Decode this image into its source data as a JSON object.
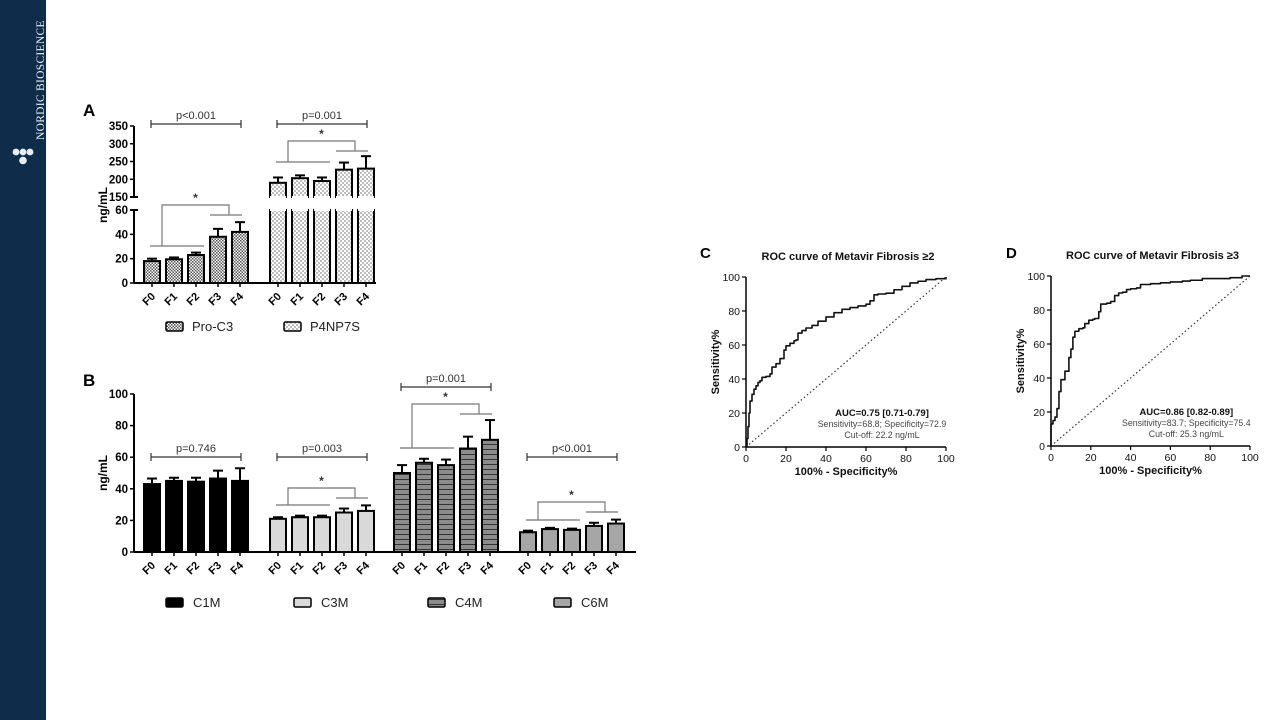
{
  "brand": {
    "name": "NORDIC BIOSCIENCE",
    "color": "#0f2d4a"
  },
  "chart_data": [
    {
      "panel": "A",
      "type": "bar",
      "ylabel": "ng/mL",
      "y_axis_broken": true,
      "ylim_lower": [
        0,
        60
      ],
      "ylim_upper": [
        150,
        350
      ],
      "yticks_lower": [
        0,
        20,
        40,
        60
      ],
      "yticks_upper": [
        150,
        200,
        250,
        300,
        350
      ],
      "categories": [
        "F0",
        "F1",
        "F2",
        "F3",
        "F4"
      ],
      "series": [
        {
          "name": "Pro-C3",
          "pattern": "dense-check",
          "values": [
            18,
            19.5,
            23,
            38,
            42
          ],
          "errors": [
            2,
            1.5,
            2,
            6.5,
            8
          ],
          "p_label": "p<0.001",
          "star": "*"
        },
        {
          "name": "P4NP7S",
          "pattern": "light-check",
          "values": [
            190,
            203,
            195,
            227,
            230
          ],
          "errors": [
            15,
            8,
            10,
            20,
            35
          ],
          "p_label": "p=0.001",
          "star": "*"
        }
      ],
      "legend": [
        "Pro-C3",
        "P4NP7S"
      ],
      "legend_position": "bottom"
    },
    {
      "panel": "B",
      "type": "bar",
      "ylabel": "ng/mL",
      "ylim": [
        0,
        100
      ],
      "yticks": [
        0,
        20,
        40,
        60,
        80,
        100
      ],
      "categories": [
        "F0",
        "F1",
        "F2",
        "F3",
        "F4"
      ],
      "series": [
        {
          "name": "C1M",
          "fill": "#000000",
          "values": [
            43,
            45,
            44.5,
            46.5,
            45
          ],
          "errors": [
            3.5,
            2,
            2.5,
            5,
            8
          ],
          "p_label": "p=0.746",
          "star": ""
        },
        {
          "name": "C3M",
          "fill": "#d9d9d9",
          "values": [
            21,
            22,
            22,
            25,
            26
          ],
          "errors": [
            1,
            1,
            1,
            2.5,
            3.5
          ],
          "p_label": "p=0.003",
          "star": "*"
        },
        {
          "name": "C4M",
          "fill": "#8c8c8c",
          "values": [
            50,
            56.5,
            55,
            65.5,
            71
          ],
          "errors": [
            5,
            2.5,
            3.5,
            7.5,
            12.5
          ],
          "p_label": "p=0.001",
          "star": "*"
        },
        {
          "name": "C6M",
          "fill": "#a6a6a6",
          "values": [
            12.5,
            14.5,
            14,
            16.5,
            18
          ],
          "errors": [
            1,
            0.8,
            0.8,
            2,
            2.5
          ],
          "p_label": "p<0.001",
          "star": "*"
        }
      ],
      "legend": [
        "C1M",
        "C3M",
        "C4M",
        "C6M"
      ],
      "legend_position": "bottom"
    },
    {
      "panel": "C",
      "type": "line",
      "title": "ROC curve of Metavir Fibrosis ≥2",
      "xlabel": "100% - Specificity%",
      "ylabel": "Sensitivity%",
      "xlim": [
        0,
        100
      ],
      "ylim": [
        0,
        100
      ],
      "xticks": [
        0,
        20,
        40,
        60,
        80,
        100
      ],
      "yticks": [
        0,
        20,
        40,
        60,
        80,
        100
      ],
      "series": [
        {
          "name": "ROC",
          "x": [
            0,
            0.5,
            1,
            1.5,
            2,
            3,
            4,
            5,
            6,
            7,
            8,
            10,
            12,
            13,
            15,
            17,
            19,
            20,
            22,
            24,
            25,
            26,
            28,
            30,
            33,
            36,
            40,
            44,
            48,
            52,
            56,
            60,
            62,
            64,
            66,
            70,
            74,
            78,
            82,
            86,
            90,
            95,
            100
          ],
          "y": [
            0,
            5,
            12,
            20,
            27,
            31,
            34,
            36,
            38,
            39,
            41,
            41.5,
            43,
            47,
            49,
            52,
            57,
            59.5,
            61,
            62.5,
            63,
            67,
            68.5,
            70,
            71.5,
            74,
            76.5,
            79,
            81,
            82,
            83,
            84,
            86,
            89.5,
            90,
            90.5,
            92.5,
            94.5,
            96.5,
            97.5,
            98.5,
            99,
            100
          ]
        },
        {
          "name": "reference",
          "x": [
            0,
            100
          ],
          "y": [
            0,
            100
          ],
          "style": "dotted"
        }
      ],
      "annotation": {
        "auc": "AUC=0.75 [0.71-0.79]",
        "sens_spec": "Sensitivity=68.8; Specificity=72.9",
        "cutoff": "Cut-off: 22.2 ng/mL"
      }
    },
    {
      "panel": "D",
      "type": "line",
      "title": "ROC curve of Metavir Fibrosis ≥3",
      "xlabel": "100% - Specificity%",
      "ylabel": "Sensitivity%",
      "xlim": [
        0,
        100
      ],
      "ylim": [
        0,
        100
      ],
      "xticks": [
        0,
        20,
        40,
        60,
        80,
        100
      ],
      "yticks": [
        0,
        20,
        40,
        60,
        80,
        100
      ],
      "series": [
        {
          "name": "ROC",
          "x": [
            0,
            0,
            1,
            2,
            3,
            4,
            5,
            7,
            9,
            10,
            11,
            12,
            14,
            16,
            17,
            19,
            21,
            22,
            24,
            25,
            28,
            30,
            32,
            34,
            36,
            38,
            40,
            43,
            45,
            50,
            55,
            60,
            66,
            70,
            76,
            80,
            90,
            96,
            100
          ],
          "y": [
            0,
            13,
            15,
            17,
            22,
            32,
            39,
            44,
            52,
            57,
            64,
            67.5,
            69,
            69.5,
            72,
            74,
            74.5,
            75,
            79,
            83.5,
            84,
            85,
            88.5,
            90,
            90.5,
            92,
            92.5,
            93,
            95,
            95.5,
            96,
            96.5,
            97,
            97.5,
            98.5,
            98.5,
            99,
            100,
            100
          ]
        },
        {
          "name": "reference",
          "x": [
            0,
            100
          ],
          "y": [
            0,
            100
          ],
          "style": "dotted"
        }
      ],
      "annotation": {
        "auc": "AUC=0.86 [0.82-0.89]",
        "sens_spec": "Sensitivity=83.7; Specificity=75.4",
        "cutoff": "Cut-off: 25.3 ng/mL"
      }
    }
  ]
}
